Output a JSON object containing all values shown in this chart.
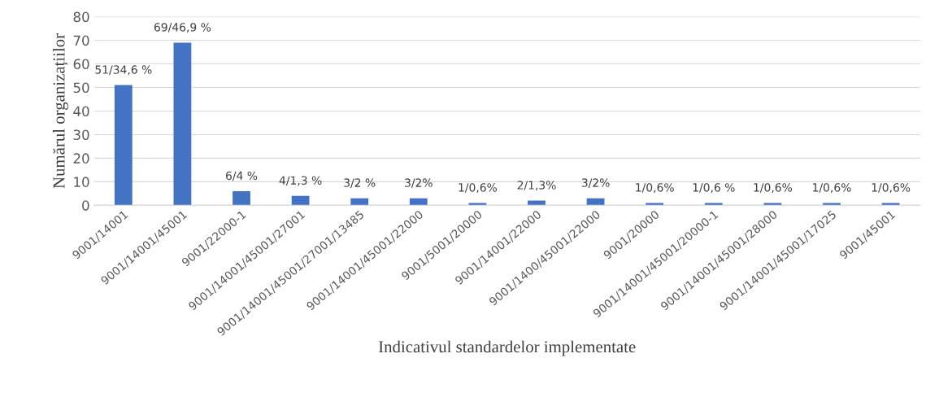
{
  "chart_data": {
    "type": "bar",
    "xlabel": "Indicativul standardelor implementate",
    "ylabel": "Numărul organizațiilor",
    "categories": [
      "9001/14001",
      "9001/14001/45001",
      "9001/22000-1",
      "9001/14001/45001/27001",
      "9001/14001/45001/27001/13485",
      "9001/14001/45001/22000",
      "9001/5001/20000",
      "9001/14001/22000",
      "9001/1400/45001/22000",
      "9001/20000",
      "9001/14001/45001/20000-1",
      "9001/14001/45001/28000",
      "9001/14001/45001/17025",
      "9001/45001"
    ],
    "values": [
      51,
      69,
      6,
      4,
      3,
      3,
      1,
      2,
      3,
      1,
      1,
      1,
      1,
      1
    ],
    "value_labels": [
      "51/34,6 %",
      "69/46,9 %",
      "6/4 %",
      "4/1,3 %",
      "3/2 %",
      "3/2%",
      "1/0,6%",
      "2/1,3%",
      "3/2%",
      "1/0,6%",
      "1/0,6 %",
      "1/0,6%",
      "1/0,6%",
      "1/0,6%"
    ],
    "color": "#4472c4",
    "ylim": [
      0,
      80
    ],
    "yticks": [
      0,
      10,
      20,
      30,
      40,
      50,
      60,
      70,
      80
    ],
    "grid": "y"
  }
}
